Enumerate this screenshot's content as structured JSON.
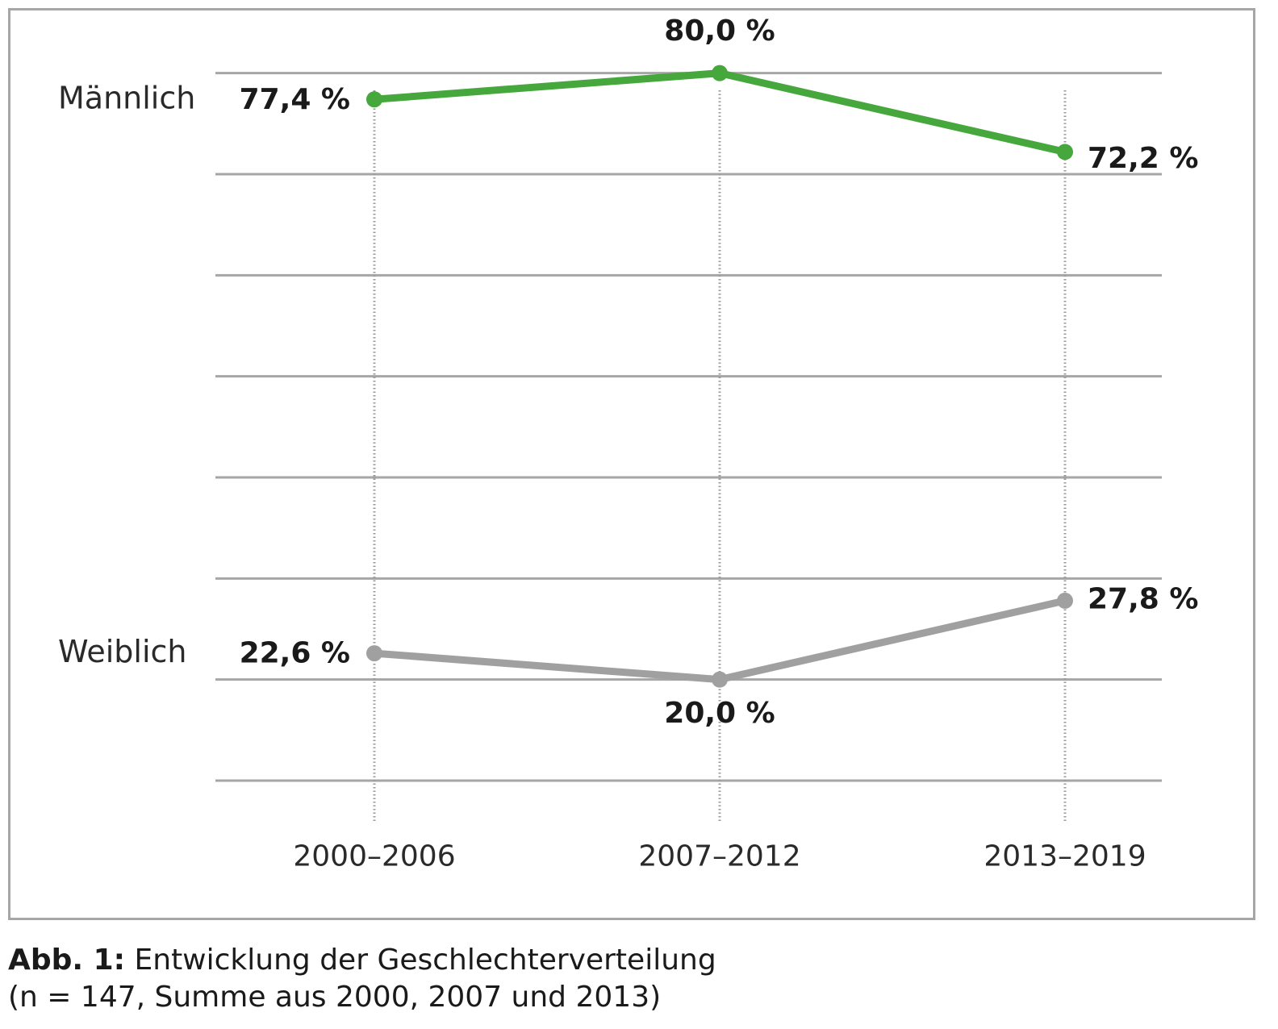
{
  "chart_data": {
    "type": "line",
    "categories": [
      "2000–2006",
      "2007–2012",
      "2013–2019"
    ],
    "series": [
      {
        "name": "Männlich",
        "values": [
          77.4,
          80.0,
          72.2
        ],
        "labels": [
          "77,4 %",
          "80,0 %",
          "72,2 %"
        ],
        "color": "#46a73c"
      },
      {
        "name": "Weiblich",
        "values": [
          22.6,
          20.0,
          27.8
        ],
        "labels": [
          "22,6 %",
          "20,0 %",
          "27,8 %"
        ],
        "color": "#a0a0a0"
      }
    ],
    "ylim": [
      10,
      85
    ],
    "grid": true,
    "legend": "left"
  },
  "caption": {
    "label": "Abb. 1:",
    "title": " Entwicklung der Geschlechterverteilung",
    "note": "(n = 147, Summe aus 2000, 2007 und 2013)"
  }
}
